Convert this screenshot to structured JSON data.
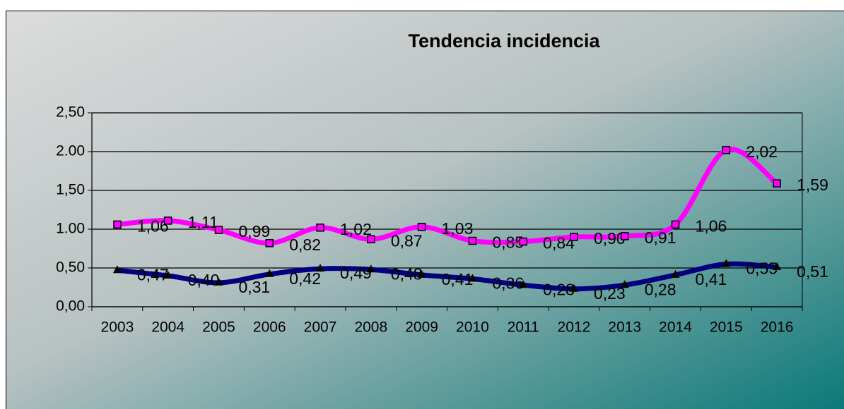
{
  "chart_data": {
    "type": "line",
    "title": "Tendencia incidencia",
    "categories": [
      "2003",
      "2004",
      "2005",
      "2006",
      "2007",
      "2008",
      "2009",
      "2010",
      "2011",
      "2012",
      "2013",
      "2014",
      "2015",
      "2016"
    ],
    "series": [
      {
        "color": "#ff00ff",
        "marker": "square",
        "values": [
          1.06,
          1.11,
          0.99,
          0.82,
          1.02,
          0.87,
          1.03,
          0.85,
          0.84,
          0.9,
          0.91,
          1.06,
          2.02,
          1.59
        ],
        "value_labels": [
          "1,06",
          "1,11",
          "0,99",
          "0,82",
          "1,02",
          "0,87",
          "1,03",
          "0,85",
          "0,84",
          "0,90",
          "0,91",
          "1,06",
          "2,02",
          "1,59"
        ]
      },
      {
        "color": "#000080",
        "marker": "triangle",
        "values": [
          0.47,
          0.4,
          0.31,
          0.42,
          0.49,
          0.48,
          0.41,
          0.36,
          0.28,
          0.23,
          0.28,
          0.41,
          0.55,
          0.51
        ],
        "value_labels": [
          "0,47",
          "0,40",
          "0,31",
          "0,42",
          "0,49",
          "0,48",
          "0,41",
          "0,36",
          "0,28",
          "0,23",
          "0,28",
          "0,41",
          "0,55",
          "0,51"
        ]
      }
    ],
    "ylim": [
      0,
      2.5
    ],
    "yticks": [
      {
        "value": 0,
        "label": "0,00"
      },
      {
        "value": 0.5,
        "label": "0,50"
      },
      {
        "value": 1,
        "label": "1.00"
      },
      {
        "value": 1.5,
        "label": "1,50"
      },
      {
        "value": 2,
        "label": "2.00"
      },
      {
        "value": 2.5,
        "label": "2,50"
      }
    ],
    "grid": true,
    "smooth": true
  }
}
